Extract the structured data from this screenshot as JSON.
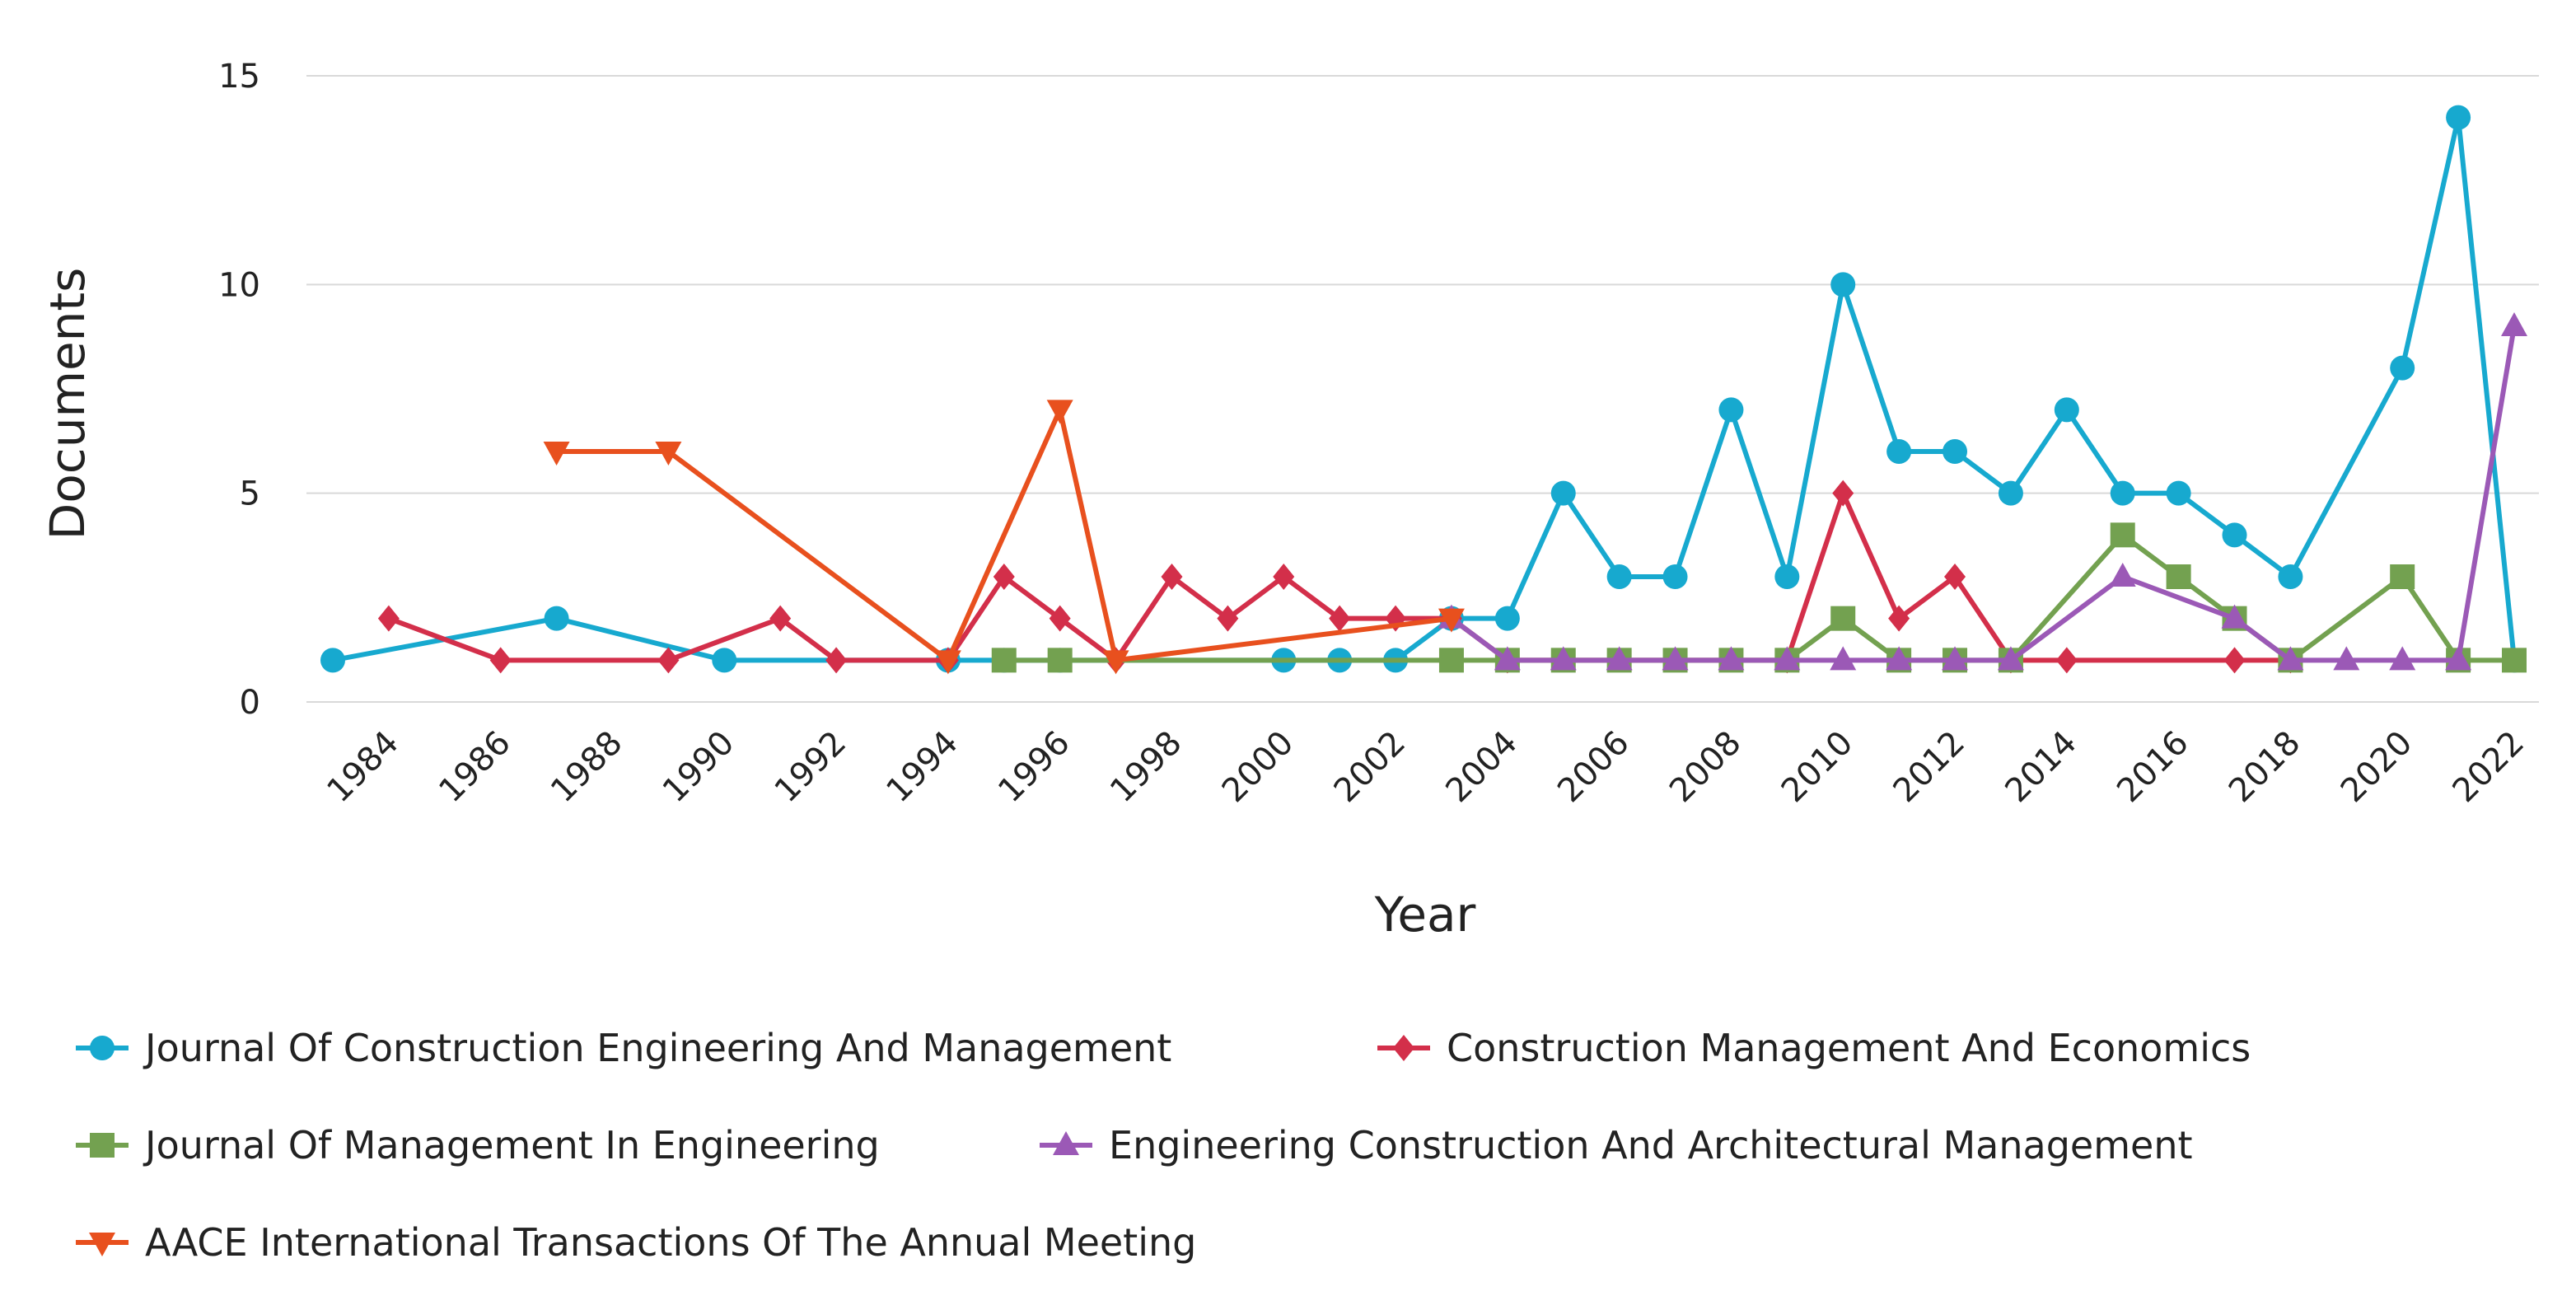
{
  "chart_data": {
    "type": "line",
    "title": "",
    "xlabel": "Year",
    "ylabel": "Documents",
    "ylim": [
      0,
      15
    ],
    "yticks": [
      "0",
      "5",
      "10",
      "15"
    ],
    "xlim": [
      1983,
      2022
    ],
    "xticks": [
      "1984",
      "1986",
      "1988",
      "1990",
      "1992",
      "1994",
      "1996",
      "1998",
      "2000",
      "2002",
      "2004",
      "2006",
      "2008",
      "2010",
      "2012",
      "2014",
      "2016",
      "2018",
      "2020",
      "2022"
    ],
    "grid": true,
    "legend_position": "bottom",
    "series": [
      {
        "name": "Journal Of Construction Engineering And Management",
        "color": "#17a9cf",
        "marker": "circle",
        "x": [
          1983,
          1987,
          1990,
          1994,
          1995,
          1996,
          2000,
          2001,
          2002,
          2003,
          2004,
          2005,
          2006,
          2007,
          2008,
          2009,
          2010,
          2011,
          2012,
          2013,
          2014,
          2015,
          2016,
          2017,
          2018,
          2020,
          2021,
          2022
        ],
        "y": [
          1,
          2,
          1,
          1,
          1,
          1,
          1,
          1,
          1,
          2,
          2,
          5,
          3,
          3,
          7,
          3,
          10,
          6,
          6,
          5,
          7,
          5,
          5,
          4,
          3,
          8,
          14,
          1
        ]
      },
      {
        "name": "Construction Management And Economics",
        "color": "#d32f4a",
        "marker": "diamond",
        "x": [
          1984,
          1986,
          1989,
          1991,
          1992,
          1994,
          1995,
          1996,
          1997,
          1998,
          1999,
          2000,
          2001,
          2002,
          2003,
          2004,
          2009,
          2010,
          2011,
          2012,
          2013,
          2014,
          2017,
          2018
        ],
        "y": [
          2,
          1,
          1,
          2,
          1,
          1,
          3,
          2,
          1,
          3,
          2,
          3,
          2,
          2,
          2,
          1,
          1,
          5,
          2,
          3,
          1,
          1,
          1,
          1
        ]
      },
      {
        "name": "Journal Of Management In Engineering",
        "color": "#73a150",
        "marker": "square",
        "x": [
          1995,
          1996,
          2003,
          2004,
          2005,
          2006,
          2007,
          2008,
          2009,
          2010,
          2011,
          2012,
          2013,
          2015,
          2016,
          2017,
          2018,
          2020,
          2021,
          2022
        ],
        "y": [
          1,
          1,
          1,
          1,
          1,
          1,
          1,
          1,
          1,
          2,
          1,
          1,
          1,
          4,
          3,
          2,
          1,
          3,
          1,
          1
        ]
      },
      {
        "name": "Engineering Construction And Architectural Management",
        "color": "#9b59b6",
        "marker": "triangle-up",
        "x": [
          2003,
          2004,
          2005,
          2006,
          2007,
          2008,
          2009,
          2010,
          2011,
          2012,
          2013,
          2015,
          2017,
          2018,
          2019,
          2020,
          2021,
          2022
        ],
        "y": [
          2,
          1,
          1,
          1,
          1,
          1,
          1,
          1,
          1,
          1,
          1,
          3,
          2,
          1,
          1,
          1,
          1,
          9
        ]
      },
      {
        "name": "AACE International Transactions Of The Annual Meeting",
        "color": "#e8501e",
        "marker": "triangle-down",
        "x": [
          1987,
          1989,
          1994,
          1996,
          1997,
          2003
        ],
        "y": [
          6,
          6,
          1,
          7,
          1,
          2
        ]
      }
    ]
  }
}
